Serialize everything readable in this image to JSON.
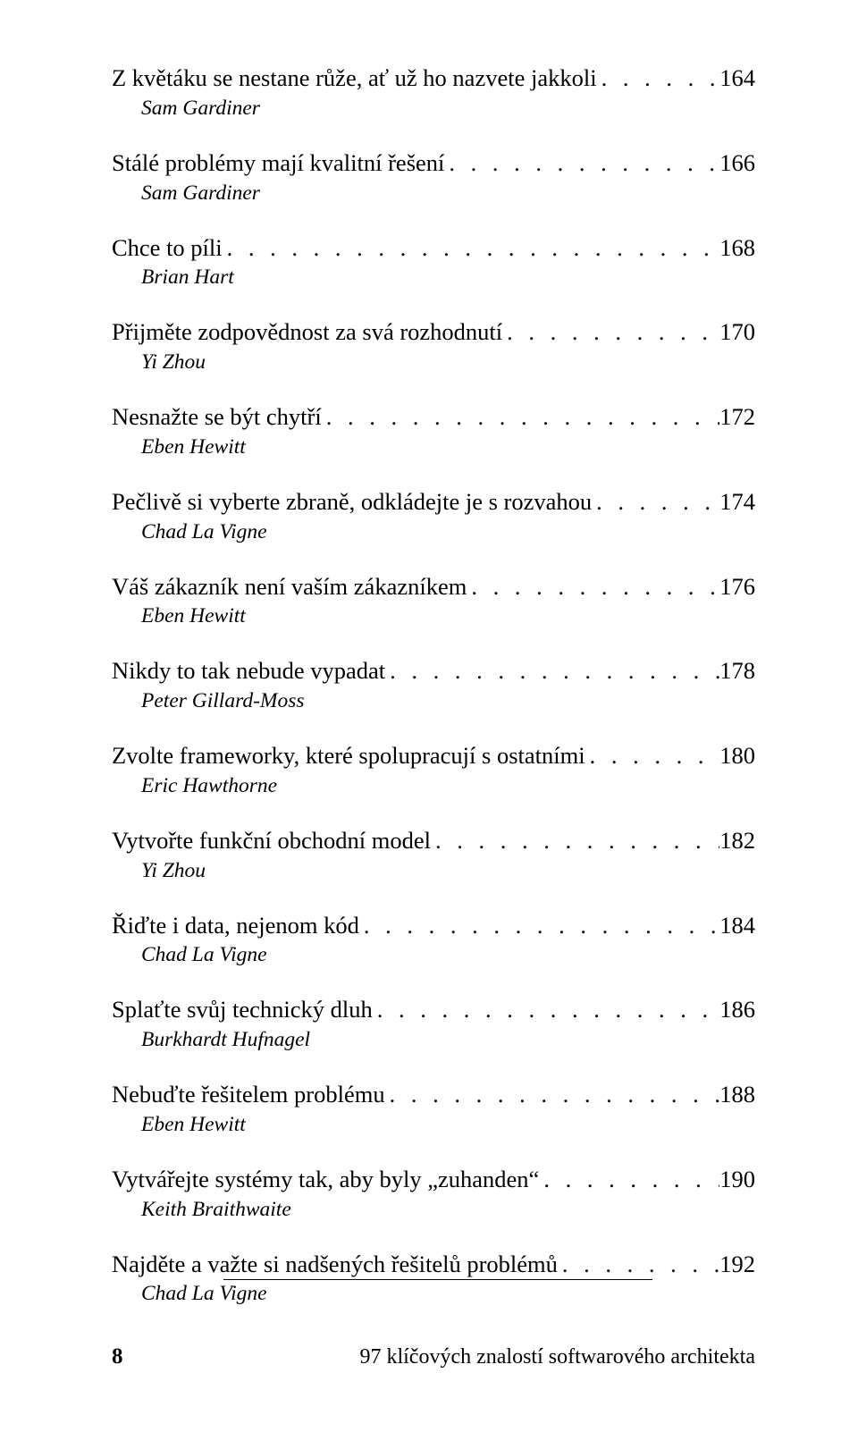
{
  "toc": [
    {
      "title": "Z květáku se nestane růže, ať už ho nazvete jakkoli",
      "page": "164",
      "author": "Sam Gardiner"
    },
    {
      "title": "Stálé problémy mají kvalitní řešení",
      "page": "166",
      "author": "Sam Gardiner"
    },
    {
      "title": "Chce to píli",
      "page": "168",
      "author": "Brian Hart"
    },
    {
      "title": "Přijměte zodpovědnost za svá rozhodnutí",
      "page": "170",
      "author": "Yi Zhou"
    },
    {
      "title": "Nesnažte se být chytří",
      "page": "172",
      "author": "Eben Hewitt"
    },
    {
      "title": "Pečlivě si vyberte zbraně, odkládejte je s rozvahou",
      "page": "174",
      "author": "Chad La Vigne"
    },
    {
      "title": "Váš zákazník není vaším zákazníkem",
      "page": "176",
      "author": "Eben Hewitt"
    },
    {
      "title": "Nikdy to tak nebude vypadat",
      "page": "178",
      "author": "Peter Gillard-Moss"
    },
    {
      "title": "Zvolte frameworky, které spolupracují s ostatními",
      "page": "180",
      "author": "Eric Hawthorne"
    },
    {
      "title": "Vytvořte funkční obchodní model",
      "page": "182",
      "author": "Yi Zhou"
    },
    {
      "title": "Řiďte i data, nejenom kód",
      "page": "184",
      "author": "Chad La Vigne"
    },
    {
      "title": "Splaťte svůj technický dluh",
      "page": "186",
      "author": "Burkhardt Hufnagel"
    },
    {
      "title": "Nebuďte řešitelem problému",
      "page": "188",
      "author": "Eben Hewitt"
    },
    {
      "title": "Vytvářejte systémy tak, aby byly „zuhanden“",
      "page": "190",
      "author": "Keith Braithwaite"
    },
    {
      "title": "Najděte a važte si nadšených řešitelů problémů",
      "page": "192",
      "author": "Chad La Vigne"
    }
  ],
  "footer": {
    "pageNumber": "8",
    "bookTitle": "97 klíčových znalostí softwarového architekta"
  },
  "style": {
    "bodyFontSizePx": 26.5,
    "authorFontSizePx": 23.5,
    "authorIndentPx": 33,
    "entryGapPx": 30,
    "textColor": "#000000",
    "backgroundColor": "#ffffff",
    "pageWidthPx": 960,
    "pageHeightPx": 1602
  }
}
